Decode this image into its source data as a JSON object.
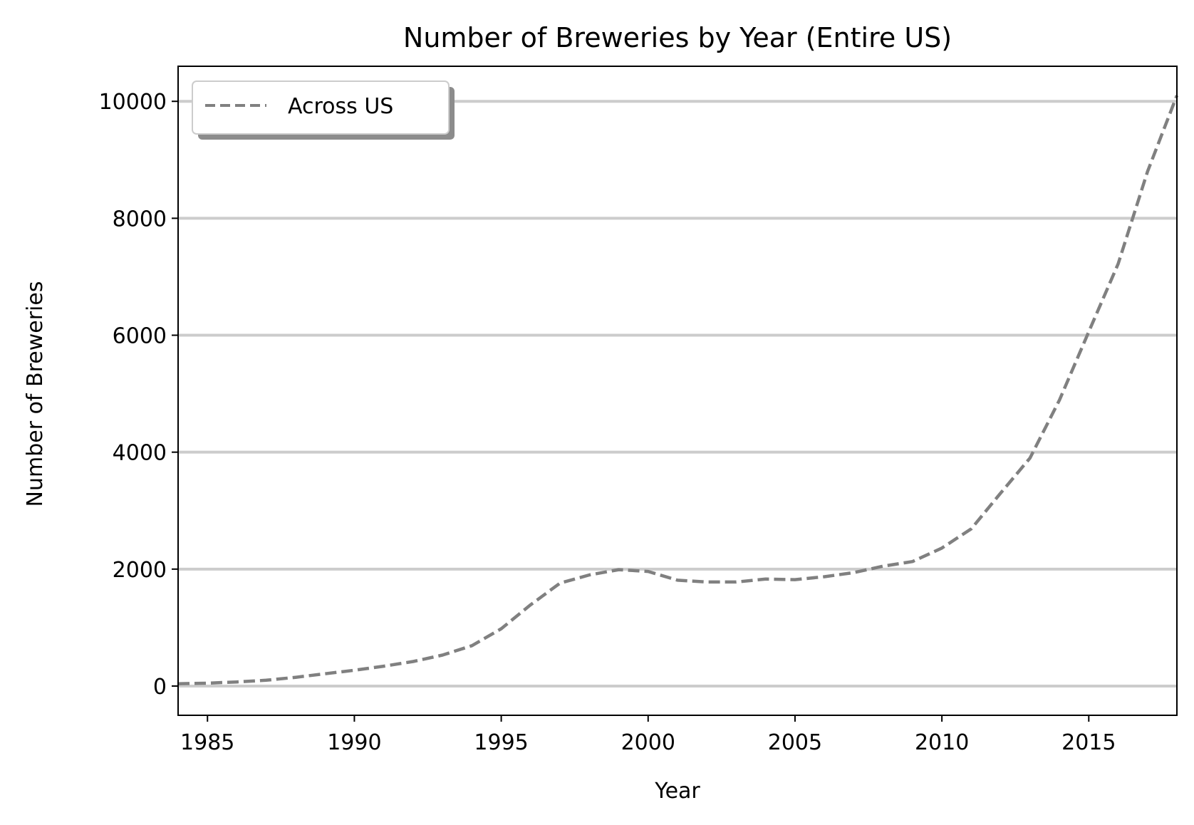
{
  "chart_data": {
    "type": "line",
    "title": "Number of Breweries by Year (Entire US)",
    "xlabel": "Year",
    "ylabel": "Number of Breweries",
    "xlim": [
      1984,
      2018
    ],
    "ylim": [
      -500,
      10600
    ],
    "x_ticks": [
      1985,
      1990,
      1995,
      2000,
      2005,
      2010,
      2015
    ],
    "y_ticks": [
      0,
      2000,
      4000,
      6000,
      8000,
      10000
    ],
    "grid": "horizontal",
    "legend_position": "top-left",
    "series": [
      {
        "name": "Across US",
        "color": "#808080",
        "line_style": "dashed",
        "x": [
          1984,
          1985,
          1986,
          1987,
          1988,
          1989,
          1990,
          1991,
          1992,
          1993,
          1994,
          1995,
          1996,
          1997,
          1998,
          1999,
          2000,
          2001,
          2002,
          2003,
          2004,
          2005,
          2006,
          2007,
          2008,
          2009,
          2010,
          2011,
          2012,
          2013,
          2014,
          2015,
          2016,
          2017,
          2018
        ],
        "y": [
          40,
          50,
          70,
          100,
          150,
          210,
          270,
          340,
          420,
          530,
          690,
          980,
          1390,
          1760,
          1900,
          1990,
          1960,
          1810,
          1780,
          1780,
          1830,
          1820,
          1870,
          1940,
          2050,
          2130,
          2360,
          2690,
          3300,
          3900,
          4890,
          6060,
          7220,
          8800,
          10100
        ]
      }
    ]
  }
}
